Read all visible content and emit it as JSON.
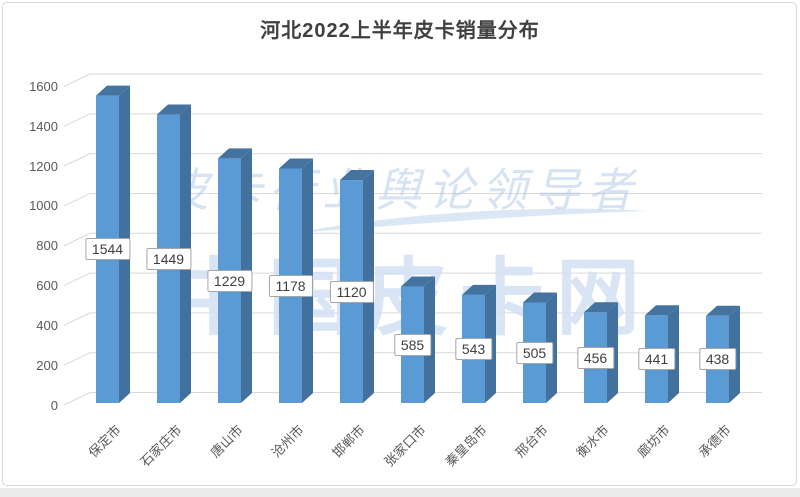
{
  "chart_data": {
    "type": "bar",
    "style": "3d-column",
    "title": "河北2022上半年皮卡销量分布",
    "categories": [
      "保定市",
      "石家庄市",
      "唐山市",
      "沧州市",
      "邯郸市",
      "张家口市",
      "秦皇岛市",
      "邢台市",
      "衡水市",
      "廊坊市",
      "承德市"
    ],
    "values": [
      1544,
      1449,
      1229,
      1178,
      1120,
      585,
      543,
      505,
      456,
      441,
      438
    ],
    "ylim": [
      0,
      1600
    ],
    "ytick_step": 200,
    "yticks": [
      0,
      200,
      400,
      600,
      800,
      1000,
      1200,
      1400,
      1600
    ],
    "grid": true,
    "legend_position": "none",
    "data_labels": "value shown in white box at middle of each bar",
    "colors": {
      "bar_front": "#5B9BD5",
      "bar_side": "#41719C",
      "bar_top": "#44739F",
      "gridline": "#D9D9D9",
      "axis_text": "#595959",
      "value_text": "#404040",
      "value_box_border": "#A6A6A6",
      "title_text": "#404040"
    }
  },
  "watermarks": {
    "script_text": "皮卡行业舆论领导者",
    "brand_text": "中国皮卡网",
    "script_color": "#AFC9E9",
    "brand_color": "#D3E1F3"
  }
}
